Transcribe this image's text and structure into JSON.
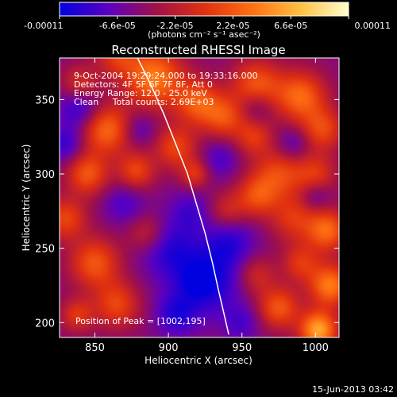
{
  "chart_data": {
    "type": "heatmap",
    "title": "Reconstructed RHESSI Image",
    "xlabel": "Heliocentric X (arcsec)",
    "ylabel": "Heliocentric Y (arcsec)",
    "xlim": [
      826,
      1016
    ],
    "ylim": [
      190,
      378
    ],
    "x_ticks": [
      850,
      900,
      950,
      1000
    ],
    "y_ticks": [
      200,
      250,
      300,
      350
    ],
    "colorbar": {
      "min": -0.00011,
      "max": 0.00011,
      "tick_values": [
        -0.00011,
        -6.6e-05,
        -2.2e-05,
        2.2e-05,
        6.6e-05,
        0.00011
      ],
      "tick_labels": [
        "-0.00011",
        "-6.6e-05",
        "-2.2e-05",
        "2.2e-05",
        "6.6e-05",
        "0.00011"
      ],
      "unit_label": "(photons cm⁻² s⁻¹ asec⁻²)",
      "colors": [
        "#0000e0",
        "#5a00c0",
        "#a0104a",
        "#e03010",
        "#ff7010",
        "#ffc040",
        "#ffffd0"
      ]
    },
    "annotations": {
      "time": "9-Oct-2004 19:29:24.000 to 19:33:16.000",
      "detectors": "Detectors: 4F 5F 6F 7F 8F, Att 0",
      "energy": "Energy Range: 12.0 - 25.0 keV",
      "algorithm": "Clean     Total counts: 2.69E+03",
      "peak": "Position of Peak = [1002,195]"
    },
    "limb_curve": [
      [
        878,
        380
      ],
      [
        888,
        360
      ],
      [
        897,
        340
      ],
      [
        905,
        320
      ],
      [
        913,
        300
      ],
      [
        919,
        280
      ],
      [
        925,
        260
      ],
      [
        930,
        240
      ],
      [
        934,
        222
      ],
      [
        938,
        205
      ],
      [
        941,
        192
      ]
    ],
    "field": {
      "background": -5e-05,
      "blobs": [
        [
          890,
          365,
          14,
          9e-05
        ],
        [
          858,
          330,
          12,
          8e-05
        ],
        [
          845,
          300,
          10,
          7e-05
        ],
        [
          878,
          302,
          9,
          6e-05
        ],
        [
          920,
          348,
          11,
          7e-05
        ],
        [
          905,
          318,
          10,
          6e-05
        ],
        [
          918,
          300,
          7,
          5e-05
        ],
        [
          938,
          338,
          10,
          6e-05
        ],
        [
          960,
          360,
          12,
          7e-05
        ],
        [
          990,
          352,
          12,
          8e-05
        ],
        [
          1005,
          330,
          10,
          6e-05
        ],
        [
          958,
          325,
          9,
          5e-05
        ],
        [
          975,
          300,
          12,
          6e-05
        ],
        [
          1000,
          300,
          10,
          5e-05
        ],
        [
          960,
          285,
          10,
          6e-05
        ],
        [
          985,
          270,
          11,
          5e-05
        ],
        [
          1008,
          262,
          10,
          8e-05
        ],
        [
          990,
          240,
          9,
          5e-05
        ],
        [
          1010,
          225,
          10,
          9e-05
        ],
        [
          975,
          210,
          10,
          7e-05
        ],
        [
          1002,
          195,
          9,
          0.00011
        ],
        [
          850,
          240,
          12,
          7e-05
        ],
        [
          865,
          212,
          11,
          6e-05
        ],
        [
          885,
          260,
          9,
          4e-05
        ],
        [
          830,
          270,
          10,
          6e-05
        ],
        [
          960,
          232,
          9,
          4e-05
        ],
        [
          840,
          360,
          9,
          5e-05
        ],
        [
          865,
          380,
          10,
          5e-05
        ],
        [
          940,
          275,
          9,
          4e-05
        ],
        [
          838,
          205,
          8,
          5e-05
        ],
        [
          925,
          228,
          16,
          -6e-05
        ],
        [
          900,
          250,
          14,
          -4e-05
        ],
        [
          942,
          255,
          12,
          -4e-05
        ],
        [
          840,
          345,
          10,
          -5e-05
        ],
        [
          830,
          320,
          9,
          -4e-05
        ],
        [
          915,
          275,
          10,
          -3e-05
        ],
        [
          870,
          280,
          10,
          -3e-05
        ],
        [
          935,
          310,
          9,
          -3e-05
        ],
        [
          905,
          205,
          10,
          -4e-05
        ],
        [
          950,
          200,
          9,
          -3e-05
        ],
        [
          985,
          320,
          8,
          -3e-05
        ],
        [
          1000,
          285,
          7,
          -3e-05
        ],
        [
          880,
          330,
          8,
          -3e-05
        ],
        [
          960,
          345,
          8,
          -3e-05
        ],
        [
          920,
          228,
          4,
          -0.00011
        ]
      ]
    }
  },
  "footer": {
    "timestamp": "15-Jun-2013 03:42"
  }
}
